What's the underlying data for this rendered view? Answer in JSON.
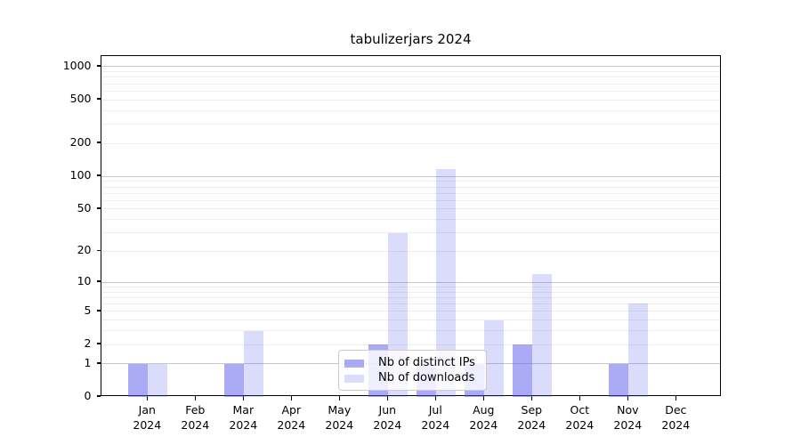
{
  "title": "tabulizerjars 2024",
  "chart_data": {
    "type": "bar",
    "title": "tabulizerjars 2024",
    "categories": [
      "Jan 2024",
      "Feb 2024",
      "Mar 2024",
      "Apr 2024",
      "May 2024",
      "Jun 2024",
      "Jul 2024",
      "Aug 2024",
      "Sep 2024",
      "Oct 2024",
      "Nov 2024",
      "Dec 2024"
    ],
    "series": [
      {
        "name": "Nb of distinct IPs",
        "color": "rgba(85,85,235,0.5)",
        "values": [
          1,
          0,
          1,
          0,
          0,
          2,
          1,
          1,
          2,
          0,
          1,
          0
        ]
      },
      {
        "name": "Nb of downloads",
        "color": "rgba(85,85,235,0.21)",
        "values": [
          1,
          0,
          3,
          0,
          0,
          30,
          117,
          4,
          12,
          0,
          6,
          0
        ]
      }
    ],
    "xlabel": "",
    "ylabel": "",
    "y_scale": "log10(1+x)",
    "y_max": 1250,
    "ylim": [
      0,
      1250
    ],
    "y_ticks": [
      0,
      1,
      2,
      5,
      10,
      20,
      50,
      100,
      200,
      500,
      1000
    ],
    "y_tick_labels": [
      "0",
      "1",
      "2",
      "5",
      "10",
      "20",
      "50",
      "100",
      "200",
      "500",
      "1000"
    ],
    "major_gridlines": [
      1,
      10,
      100,
      1000
    ],
    "minor_gridlines": [
      2,
      3,
      4,
      5,
      6,
      7,
      8,
      9,
      20,
      30,
      40,
      50,
      60,
      70,
      80,
      90,
      200,
      300,
      400,
      500,
      600,
      700,
      800,
      900
    ],
    "grid": true,
    "legend": {
      "position": "lower center",
      "items": [
        "Nb of distinct IPs",
        "Nb of downloads"
      ]
    }
  },
  "colors": {
    "bar_dark": "rgba(85,85,235,0.5)",
    "bar_light": "rgba(85,85,235,0.21)",
    "major_grid": "#c6c6c6",
    "minor_grid": "#ededed",
    "spine": "#000000",
    "legend_border": "#cccccc"
  }
}
